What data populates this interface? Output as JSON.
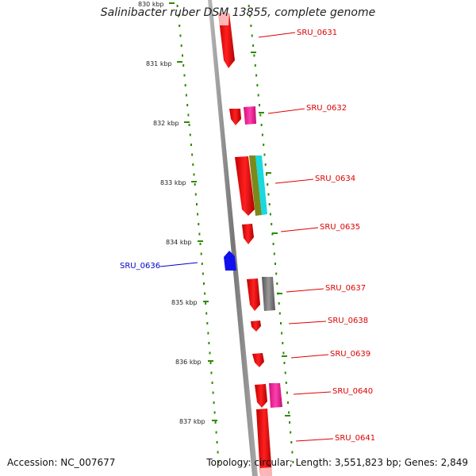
{
  "title": "Salinibacter ruber DSM 13855, complete genome",
  "accession": "Accession: NC_007677",
  "topology": "Topology: circular; Length: 3,551,823 bp; Genes: 2,849",
  "colors": {
    "backbone": "#888888",
    "tick": "#2e8b00",
    "gene_red": "#ff1010",
    "gene_magenta": "#ff2fa8",
    "gene_blue": "#1010ee",
    "gene_olive": "#7a8a1a",
    "gene_cyan": "#18d8e0",
    "gene_gray": "#777777",
    "label_red": "#dd0000",
    "label_blue": "#0000cc"
  },
  "scale_labels": [
    "830 kbp",
    "831 kbp",
    "832 kbp",
    "833 kbp",
    "834 kbp",
    "835 kbp",
    "836 kbp",
    "837 kbp"
  ],
  "genes": [
    {
      "label": "SRU_0631",
      "color": "red"
    },
    {
      "label": "SRU_0632",
      "color": "red"
    },
    {
      "label": "SRU_0634",
      "color": "red"
    },
    {
      "label": "SRU_0635",
      "color": "red"
    },
    {
      "label": "SRU_0636",
      "color": "blue"
    },
    {
      "label": "SRU_0637",
      "color": "red"
    },
    {
      "label": "SRU_0638",
      "color": "red"
    },
    {
      "label": "SRU_0639",
      "color": "red"
    },
    {
      "label": "SRU_0640",
      "color": "red"
    },
    {
      "label": "SRU_0641",
      "color": "red"
    }
  ]
}
